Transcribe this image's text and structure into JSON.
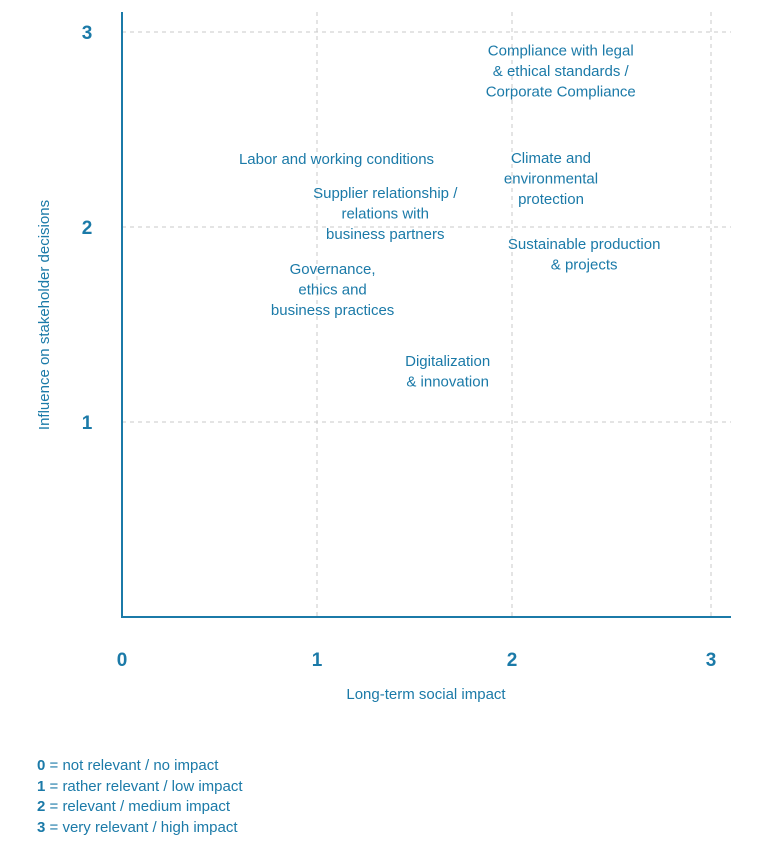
{
  "chart_data": {
    "type": "scatter",
    "title": "",
    "xlabel": "Long-term social impact",
    "ylabel": "Influence on stakeholder decisions",
    "xlim": [
      0,
      3
    ],
    "ylim": [
      0,
      3
    ],
    "x_ticks": [
      "0",
      "1",
      "2",
      "3"
    ],
    "y_ticks": [
      "1",
      "2",
      "3"
    ],
    "grid": true,
    "points": [
      {
        "name": "Compliance with legal & ethical standards / Corporate Compliance",
        "lines": [
          "Compliance with legal",
          "& ethical standards /",
          "Corporate Compliance"
        ],
        "x": 2.25,
        "y": 2.8
      },
      {
        "name": "Labor and working conditions",
        "lines": [
          "Labor and working conditions"
        ],
        "x": 1.1,
        "y": 2.35
      },
      {
        "name": "Climate and environmental protection",
        "lines": [
          "Climate and",
          "environmental",
          "protection"
        ],
        "x": 2.2,
        "y": 2.25
      },
      {
        "name": "Supplier relationship / relations with business partners",
        "lines": [
          "Supplier relationship /",
          "relations with",
          "business partners"
        ],
        "x": 1.35,
        "y": 2.07
      },
      {
        "name": "Sustainable production & projects",
        "lines": [
          "Sustainable production",
          "& projects"
        ],
        "x": 2.37,
        "y": 1.86
      },
      {
        "name": "Governance, ethics and business practices",
        "lines": [
          "Governance,",
          "ethics and",
          "business practices"
        ],
        "x": 1.08,
        "y": 1.68
      },
      {
        "name": "Digitalization & innovation",
        "lines": [
          "Digitalization",
          "& innovation"
        ],
        "x": 1.67,
        "y": 1.26
      }
    ]
  },
  "legend": [
    {
      "key": "0",
      "text": " = not relevant / no impact"
    },
    {
      "key": "1",
      "text": " = rather relevant / low impact"
    },
    {
      "key": "2",
      "text": " = relevant / medium impact"
    },
    {
      "key": "3",
      "text": " = very relevant / high impact"
    }
  ]
}
